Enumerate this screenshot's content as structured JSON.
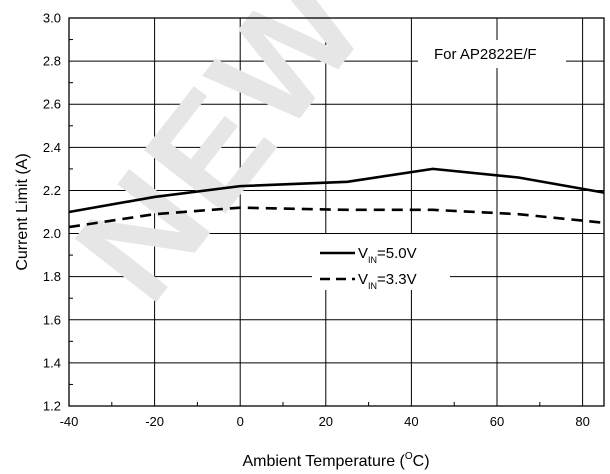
{
  "chart_data": {
    "type": "line",
    "xlabel": "Ambient Temperature (",
    "xlabel_sup": "O",
    "xlabel_tail": "C)",
    "ylabel": "Current Limit (A)",
    "annotation": "For AP2822E/F",
    "xlim": [
      -40,
      85
    ],
    "ylim": [
      1.2,
      3.0
    ],
    "x_ticks": [
      "-40",
      "-20",
      "0",
      "20",
      "40",
      "60",
      "80"
    ],
    "y_ticks": [
      "1.2",
      "1.4",
      "1.6",
      "1.8",
      "2.0",
      "2.2",
      "2.4",
      "2.6",
      "2.8",
      "3.0"
    ],
    "grid": true,
    "legend_position": "center",
    "series": [
      {
        "name_main": "V",
        "name_sub": "IN",
        "name_tail": "=5.0V",
        "style": "solid",
        "x": [
          -40,
          -20,
          0,
          25,
          45,
          65,
          85
        ],
        "y": [
          2.1,
          2.17,
          2.22,
          2.24,
          2.3,
          2.26,
          2.19
        ]
      },
      {
        "name_main": "V",
        "name_sub": "IN",
        "name_tail": "=3.3V",
        "style": "dashed",
        "x": [
          -40,
          -20,
          0,
          25,
          45,
          65,
          85
        ],
        "y": [
          2.03,
          2.09,
          2.12,
          2.11,
          2.11,
          2.09,
          2.05
        ]
      }
    ]
  }
}
